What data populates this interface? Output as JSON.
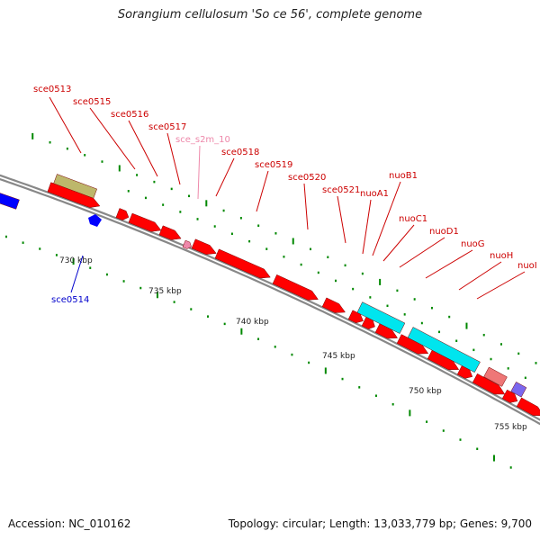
{
  "title": "Sorangium cellulosum 'So ce 56', complete genome",
  "footer": {
    "accession": "Accession: NC_010162",
    "topology": "Topology: circular; Length: 13,033,779 bp; Genes: 9,700"
  },
  "colors": {
    "forward_gene": "#ff0000",
    "reverse_gene": "#0000ff",
    "forward_label": "#cc0000",
    "reverse_label": "#0000cc",
    "rna_label": "#ee88aa",
    "backbone": "#888888",
    "tick_mark": "#008800",
    "olive_feature": "#bdb76b",
    "cyan_feature": "#00e5ee",
    "salmon_feature": "#ee7777",
    "slate_feature": "#7b68ee"
  },
  "scale_labels": [
    "730 kbp",
    "735 kbp",
    "740 kbp",
    "745 kbp",
    "750 kbp",
    "755 kbp"
  ],
  "gene_labels": [
    {
      "id": "sce0513",
      "strand": "forward"
    },
    {
      "id": "sce0514",
      "strand": "reverse"
    },
    {
      "id": "sce0515",
      "strand": "forward"
    },
    {
      "id": "sce0516",
      "strand": "forward"
    },
    {
      "id": "sce0517",
      "strand": "forward"
    },
    {
      "id": "sce_s2m_10",
      "strand": "rna"
    },
    {
      "id": "sce0518",
      "strand": "forward"
    },
    {
      "id": "sce0519",
      "strand": "forward"
    },
    {
      "id": "sce0520",
      "strand": "forward"
    },
    {
      "id": "sce0521",
      "strand": "forward"
    },
    {
      "id": "nuoA1",
      "strand": "forward"
    },
    {
      "id": "nuoB1",
      "strand": "forward"
    },
    {
      "id": "nuoC1",
      "strand": "forward"
    },
    {
      "id": "nuoD1",
      "strand": "forward"
    },
    {
      "id": "nuoG",
      "strand": "forward"
    },
    {
      "id": "nuoH",
      "strand": "forward"
    },
    {
      "id": "nuoI",
      "strand": "forward"
    }
  ]
}
